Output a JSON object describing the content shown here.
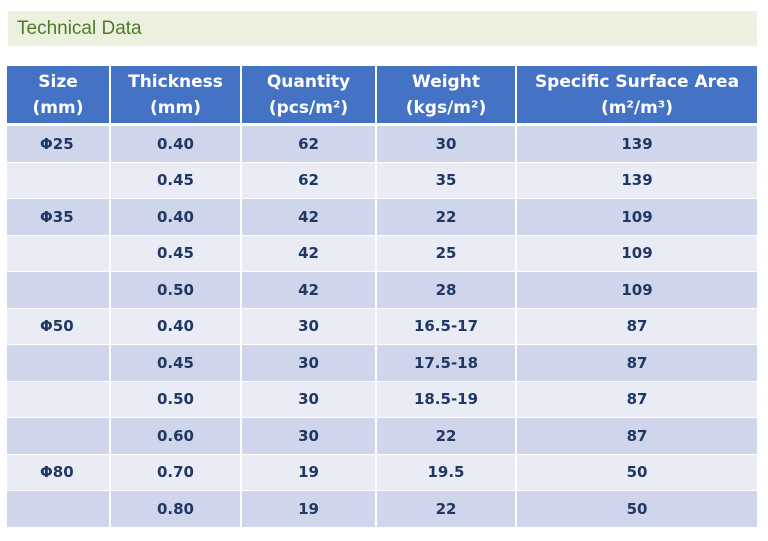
{
  "section_title": "Technical Data",
  "table": {
    "headers": [
      {
        "line1": "Size",
        "line2": "(mm)"
      },
      {
        "line1": "Thickness",
        "line2": "(mm)"
      },
      {
        "line1": "Quantity",
        "line2": "(pcs/m²)"
      },
      {
        "line1": "Weight",
        "line2": "(kgs/m²)"
      },
      {
        "line1": "Specific Surface Area",
        "line2": "(m²/m³)"
      }
    ],
    "rows": [
      [
        "Φ25",
        "0.40",
        "62",
        "30",
        "139"
      ],
      [
        "",
        "0.45",
        "62",
        "35",
        "139"
      ],
      [
        "Φ35",
        "0.40",
        "42",
        "22",
        "109"
      ],
      [
        "",
        "0.45",
        "42",
        "25",
        "109"
      ],
      [
        "",
        "0.50",
        "42",
        "28",
        "109"
      ],
      [
        "Φ50",
        "0.40",
        "30",
        "16.5-17",
        "87"
      ],
      [
        "",
        "0.45",
        "30",
        "17.5-18",
        "87"
      ],
      [
        "",
        "0.50",
        "30",
        "18.5-19",
        "87"
      ],
      [
        "",
        "0.60",
        "30",
        "22",
        "87"
      ],
      [
        "Φ80",
        "0.70",
        "19",
        "19.5",
        "50"
      ],
      [
        "",
        "0.80",
        "19",
        "22",
        "50"
      ]
    ]
  },
  "colors": {
    "header_bg": "#4472c4",
    "band_dark": "#cfd5ea",
    "band_light": "#e9ebf5",
    "section_bg": "#ebf1de",
    "section_text": "#4f7a2a",
    "cell_text": "#1f3864"
  }
}
